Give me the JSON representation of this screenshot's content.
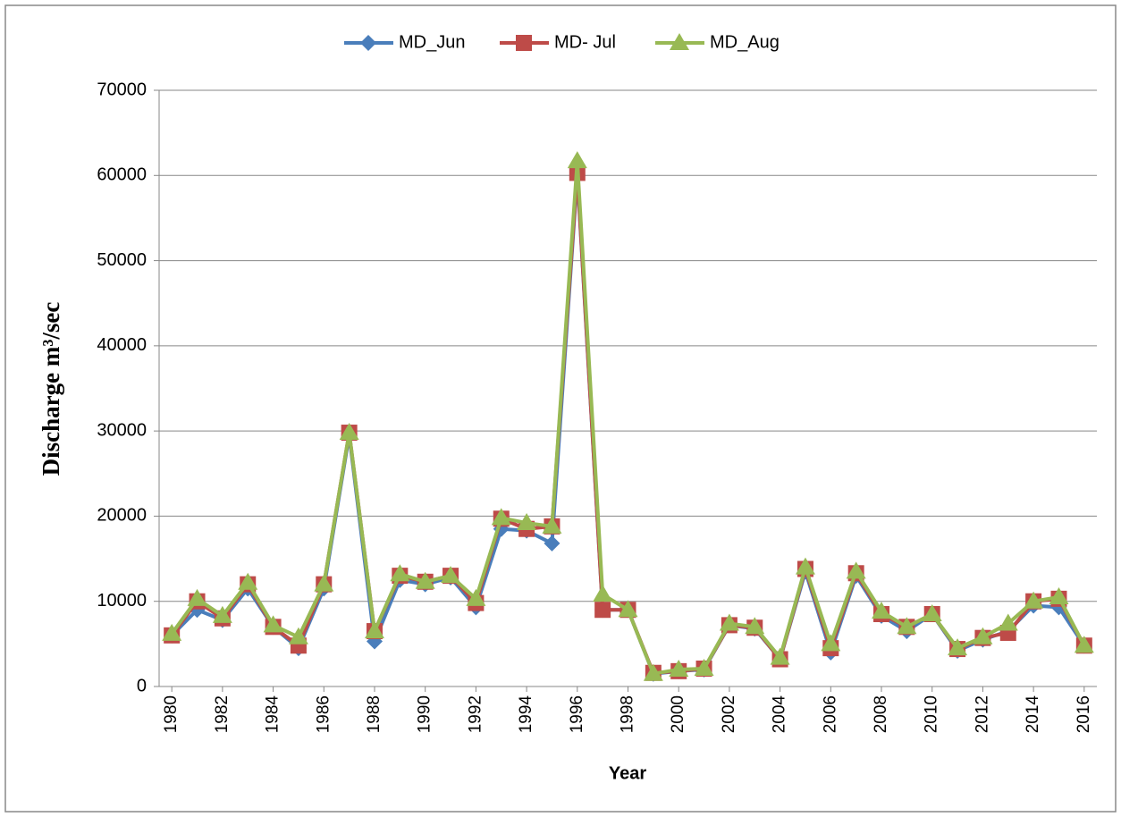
{
  "chart_data": {
    "type": "line",
    "x_label": "Year",
    "y_label": "Discharge m³/sec",
    "x": [
      1980,
      1981,
      1982,
      1983,
      1984,
      1985,
      1986,
      1987,
      1988,
      1989,
      1990,
      1991,
      1992,
      1993,
      1994,
      1995,
      1996,
      1997,
      1998,
      1999,
      2000,
      2001,
      2002,
      2003,
      2004,
      2005,
      2006,
      2007,
      2008,
      2009,
      2010,
      2011,
      2012,
      2013,
      2014,
      2015,
      2016
    ],
    "xlim": [
      1979.5,
      2016.5
    ],
    "xticks": [
      1980,
      1982,
      1984,
      1986,
      1988,
      1990,
      1992,
      1994,
      1996,
      1998,
      2000,
      2002,
      2004,
      2006,
      2008,
      2010,
      2012,
      2014,
      2016
    ],
    "ylim": [
      0,
      70000
    ],
    "yticks": [
      0,
      10000,
      20000,
      30000,
      40000,
      50000,
      60000,
      70000
    ],
    "grid": true,
    "legend": "top",
    "series": [
      {
        "name": "MD_Jun",
        "color": "#4a7ebb",
        "marker": "diamond",
        "values": [
          6000,
          9000,
          7800,
          11500,
          7000,
          4500,
          11500,
          29500,
          5300,
          12500,
          12000,
          12800,
          9300,
          18500,
          18300,
          16800,
          60000,
          9000,
          9000,
          1500,
          1800,
          2000,
          7200,
          6800,
          3200,
          13500,
          4000,
          13000,
          8300,
          6500,
          8500,
          4200,
          5500,
          6500,
          9500,
          9300,
          4800
        ]
      },
      {
        "name": "MD- Jul",
        "color": "#be4b48",
        "marker": "square",
        "values": [
          6000,
          10000,
          8000,
          12000,
          7000,
          4800,
          12000,
          29800,
          6500,
          13000,
          12300,
          13000,
          9800,
          19700,
          18500,
          18800,
          60300,
          9000,
          9000,
          1600,
          1800,
          2100,
          7200,
          6900,
          3200,
          13800,
          4500,
          13300,
          8500,
          7000,
          8500,
          4400,
          5700,
          6300,
          10000,
          10300,
          4800
        ]
      },
      {
        "name": "MD_Aug",
        "color": "#98b954",
        "marker": "triangle",
        "values": [
          6200,
          10300,
          8300,
          12200,
          7200,
          5800,
          12000,
          29800,
          6500,
          13200,
          12300,
          13000,
          10300,
          19800,
          19200,
          18800,
          61700,
          10800,
          9000,
          1500,
          2000,
          2100,
          7400,
          7000,
          3400,
          14000,
          5000,
          13500,
          8800,
          7000,
          8500,
          4500,
          5800,
          7400,
          10000,
          10500,
          4800
        ]
      }
    ]
  }
}
